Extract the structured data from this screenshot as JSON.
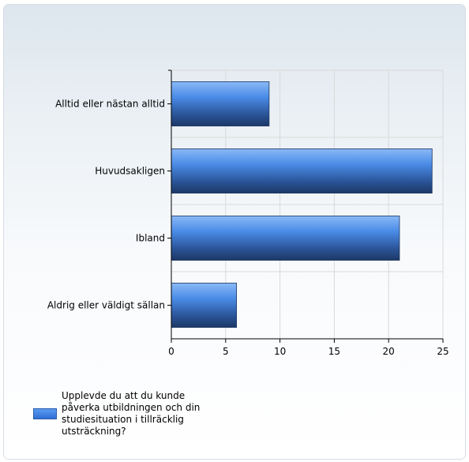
{
  "colors": {
    "bar_top": "#8ab9f7",
    "bar_mid": "#3f80df",
    "bar_bottom": "#1c3866",
    "grid": "#d9d9d9",
    "axis": "#000000"
  },
  "chart_data": {
    "type": "bar",
    "orientation": "horizontal",
    "categories": [
      "Alltid eller nästan alltid",
      "Huvudsakligen",
      "Ibland",
      "Aldrig eller väldigt sällan"
    ],
    "series": [
      {
        "name": "Upplevde du att du kunde påverka utbildningen och din studiesituation i tillräcklig utsträckning?",
        "values": [
          9,
          24,
          21,
          6
        ]
      }
    ],
    "xlim": [
      0,
      25
    ],
    "xticks": [
      0,
      5,
      10,
      15,
      20,
      25
    ],
    "grid": true,
    "legend_position": "bottom-left"
  }
}
